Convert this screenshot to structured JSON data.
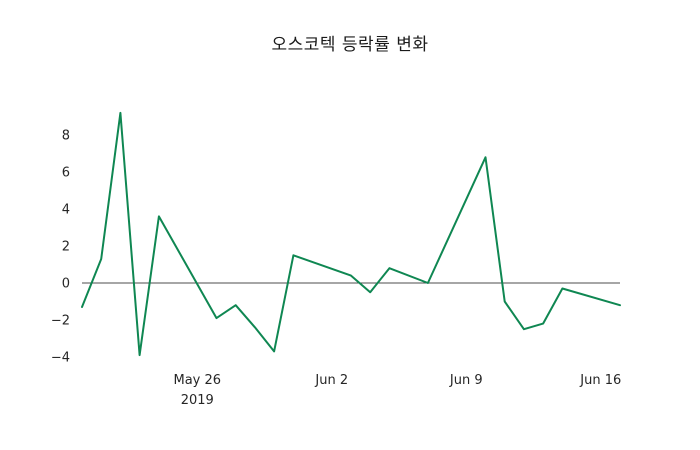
{
  "title": "오스코텍 등락률 변화",
  "colors": {
    "line": "#0f8752",
    "zero_line": "#4d4d4d",
    "tick_text": "#262626",
    "title_text": "#1a1a1a",
    "background": "#ffffff"
  },
  "chart_data": {
    "type": "line",
    "title": "오스코텍 등락률 변화",
    "xlabel": "",
    "ylabel": "",
    "grid": false,
    "legend": "none",
    "zero_line": true,
    "xlim": [
      "2019-05-20",
      "2019-06-17"
    ],
    "ylim": [
      -4.6,
      9.9
    ],
    "y_ticks": [
      {
        "value": 8,
        "label": "8"
      },
      {
        "value": 6,
        "label": "6"
      },
      {
        "value": 4,
        "label": "4"
      },
      {
        "value": 2,
        "label": "2"
      },
      {
        "value": 0,
        "label": "0"
      },
      {
        "value": -2,
        "label": "−2"
      },
      {
        "value": -4,
        "label": "−4"
      }
    ],
    "x_ticks": [
      {
        "date": "2019-05-26",
        "label": "May 26",
        "sublabel": "2019"
      },
      {
        "date": "2019-06-02",
        "label": "Jun 2",
        "sublabel": ""
      },
      {
        "date": "2019-06-09",
        "label": "Jun 9",
        "sublabel": ""
      },
      {
        "date": "2019-06-16",
        "label": "Jun 16",
        "sublabel": ""
      }
    ],
    "series": [
      {
        "name": "등락률",
        "color": "#0f8752",
        "x": [
          "2019-05-20",
          "2019-05-21",
          "2019-05-22",
          "2019-05-23",
          "2019-05-24",
          "2019-05-27",
          "2019-05-28",
          "2019-05-29",
          "2019-05-30",
          "2019-05-31",
          "2019-06-03",
          "2019-06-04",
          "2019-06-05",
          "2019-06-07",
          "2019-06-10",
          "2019-06-11",
          "2019-06-12",
          "2019-06-13",
          "2019-06-14",
          "2019-06-17"
        ],
        "values": [
          -1.3,
          1.3,
          9.2,
          -3.9,
          3.6,
          -1.9,
          -1.2,
          -2.4,
          -3.7,
          1.5,
          0.4,
          -0.5,
          0.8,
          0.0,
          6.8,
          -1.0,
          -2.5,
          -2.2,
          -0.3,
          -1.2
        ]
      }
    ]
  }
}
